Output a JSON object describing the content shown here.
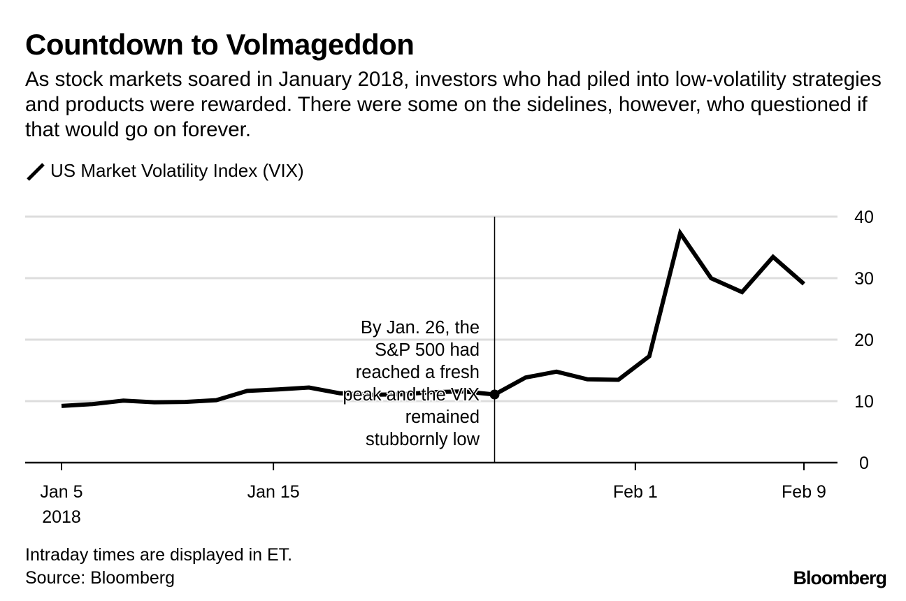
{
  "header": {
    "title": "Countdown to Volmageddon",
    "subtitle": "As stock markets soared in January 2018, investors who had piled into low-volatility strategies and products were rewarded. There were some on the sidelines, however, who questioned if that would go on forever."
  },
  "legend": {
    "icon": "line-swatch-icon",
    "label": "US Market Volatility Index (VIX)"
  },
  "footer": {
    "note": "Intraday times are displayed in ET.",
    "source": "Source: Bloomberg",
    "logo": "Bloomberg"
  },
  "chart_data": {
    "type": "line",
    "title": "Countdown to Volmageddon",
    "xlabel": "",
    "ylabel": "",
    "ylim": [
      0,
      40
    ],
    "yticks": [
      0,
      10,
      20,
      30,
      40
    ],
    "y_axis_side": "right",
    "grid": true,
    "x": [
      "Jan 5",
      "Jan 8",
      "Jan 9",
      "Jan 10",
      "Jan 11",
      "Jan 12",
      "Jan 16",
      "Jan 17",
      "Jan 18",
      "Jan 19",
      "Jan 22",
      "Jan 23",
      "Jan 24",
      "Jan 25",
      "Jan 26",
      "Jan 29",
      "Jan 30",
      "Jan 31",
      "Feb 1",
      "Feb 2",
      "Feb 5",
      "Feb 6",
      "Feb 7",
      "Feb 8",
      "Feb 9"
    ],
    "series": [
      {
        "name": "US Market Volatility Index (VIX)",
        "color": "#000000",
        "values": [
          9.22,
          9.52,
          10.08,
          9.82,
          9.88,
          10.16,
          11.66,
          11.91,
          12.22,
          11.27,
          11.03,
          11.1,
          11.47,
          11.58,
          11.08,
          13.84,
          14.79,
          13.54,
          13.47,
          17.31,
          37.32,
          29.98,
          27.73,
          33.46,
          29.06
        ]
      }
    ],
    "xticks": [
      {
        "label": "Jan 5",
        "sublabel": "2018",
        "index": 0
      },
      {
        "label": "Jan 15",
        "sublabel": "",
        "index": 6.85
      },
      {
        "label": "Feb 1",
        "sublabel": "",
        "index": 18.55
      },
      {
        "label": "Feb 9",
        "sublabel": "",
        "index": 24
      }
    ],
    "annotation": {
      "index": 14,
      "date": "Jan 26",
      "value": 11.08,
      "lines": [
        "By Jan. 26, the",
        "S&P 500 had",
        "reached a fresh",
        "peak and the VIX",
        "remained",
        "stubbornly low"
      ]
    }
  }
}
